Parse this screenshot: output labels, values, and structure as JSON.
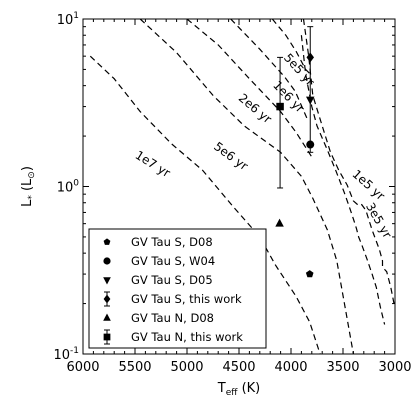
{
  "chart_data": {
    "type": "scatter",
    "xlabel_main": "T",
    "xlabel_sub": "eff",
    "xlabel_unit": " (K)",
    "ylabel_main": "L",
    "ylabel_sub": "*",
    "ylabel_unit_open": " (L",
    "ylabel_unit_sub": "⊙",
    "ylabel_unit_close": ")",
    "x_reversed": true,
    "xlim": [
      6000,
      3000
    ],
    "y_scale": "log",
    "ylim": [
      0.1,
      10
    ],
    "x_ticks": [
      {
        "value": 6000,
        "label": "6000"
      },
      {
        "value": 5500,
        "label": "5500"
      },
      {
        "value": 5000,
        "label": "5000"
      },
      {
        "value": 4500,
        "label": "4500"
      },
      {
        "value": 4000,
        "label": "4000"
      },
      {
        "value": 3500,
        "label": "3500"
      },
      {
        "value": 3000,
        "label": "3000"
      }
    ],
    "y_ticks": [
      {
        "value": 0.1,
        "base": "10",
        "exp": "-1"
      },
      {
        "value": 1,
        "base": "10",
        "exp": "0"
      },
      {
        "value": 10,
        "base": "10",
        "exp": "1"
      }
    ],
    "isochrones": [
      {
        "label": "1e5 yr",
        "points": [
          [
            3880,
            10
          ],
          [
            3830,
            6.0
          ],
          [
            3790,
            3.5
          ],
          [
            3690,
            2.2
          ],
          [
            3620,
            1.6
          ],
          [
            3540,
            1.25
          ],
          [
            3460,
            1.02
          ],
          [
            3400,
            0.82
          ],
          [
            3350,
            0.77
          ],
          [
            3320,
            0.78
          ],
          [
            3280,
            0.72
          ],
          [
            3220,
            0.55
          ],
          [
            3150,
            0.42
          ],
          [
            3120,
            0.36
          ],
          [
            3120,
            0.33
          ],
          [
            3080,
            0.31
          ],
          [
            3040,
            0.25
          ],
          [
            3010,
            0.2
          ]
        ]
      },
      {
        "label": "3e5 yr",
        "points": [
          [
            3900,
            8.0
          ],
          [
            3860,
            4.7
          ],
          [
            3800,
            3.0
          ],
          [
            3750,
            2.3
          ],
          [
            3650,
            1.65
          ],
          [
            3570,
            1.25
          ],
          [
            3490,
            0.93
          ],
          [
            3440,
            0.76
          ],
          [
            3400,
            0.64
          ],
          [
            3370,
            0.56
          ],
          [
            3350,
            0.5
          ],
          [
            3320,
            0.45
          ],
          [
            3270,
            0.37
          ],
          [
            3220,
            0.3
          ],
          [
            3180,
            0.25
          ],
          [
            3140,
            0.19
          ],
          [
            3100,
            0.15
          ]
        ]
      },
      {
        "label": "5e5 yr",
        "points": [
          [
            4180,
            10
          ],
          [
            4050,
            8.0
          ],
          [
            3950,
            6.4
          ],
          [
            3860,
            5.0
          ],
          [
            3800,
            4.6
          ]
        ]
      },
      {
        "label": "1e6 yr",
        "points": [
          [
            4580,
            10
          ],
          [
            4300,
            6.6
          ],
          [
            4060,
            4.5
          ],
          [
            3960,
            3.7
          ],
          [
            3840,
            2.5
          ]
        ]
      },
      {
        "label": "2e6 yr",
        "points": [
          [
            5000,
            10
          ],
          [
            4700,
            7.0
          ],
          [
            4400,
            4.4
          ],
          [
            4100,
            2.8
          ],
          [
            3950,
            2.1
          ],
          [
            3800,
            1.5
          ]
        ]
      },
      {
        "label": "5e6 yr",
        "points": [
          [
            5450,
            10
          ],
          [
            5100,
            6.3
          ],
          [
            4750,
            3.5
          ],
          [
            4450,
            2.3
          ],
          [
            4100,
            1.6
          ],
          [
            3900,
            1.15
          ],
          [
            3790,
            0.85
          ],
          [
            3650,
            0.55
          ],
          [
            3560,
            0.36
          ],
          [
            3480,
            0.19
          ],
          [
            3400,
            0.1
          ]
        ]
      },
      {
        "label": "1e7 yr",
        "points": [
          [
            5930,
            6.0
          ],
          [
            5700,
            4.4
          ],
          [
            5450,
            2.8
          ],
          [
            5150,
            1.8
          ],
          [
            4850,
            1.25
          ],
          [
            4550,
            0.75
          ],
          [
            4300,
            0.5
          ],
          [
            4150,
            0.34
          ],
          [
            3950,
            0.22
          ],
          [
            3820,
            0.155
          ],
          [
            3720,
            0.1
          ]
        ]
      }
    ],
    "isochrone_labels": [
      {
        "text": "5e5 yr",
        "x": 3950,
        "y": 4.8,
        "angle": 48
      },
      {
        "text": "1e6 yr",
        "x": 4050,
        "y": 3.3,
        "angle": 46
      },
      {
        "text": "2e6 yr",
        "x": 4370,
        "y": 2.8,
        "angle": 40
      },
      {
        "text": "5e6 yr",
        "x": 4600,
        "y": 1.45,
        "angle": 36
      },
      {
        "text": "1e7 yr",
        "x": 5350,
        "y": 1.3,
        "angle": 32
      },
      {
        "text": "1e5 yr",
        "x": 3280,
        "y": 0.98,
        "angle": 42
      },
      {
        "text": "3e5 yr",
        "x": 3190,
        "y": 0.61,
        "angle": 60
      }
    ],
    "series": [
      {
        "name": "GV Tau S, D08",
        "marker": "pentagon",
        "points": [
          {
            "x": 3820,
            "y": 0.3
          }
        ]
      },
      {
        "name": "GV Tau S, W04",
        "marker": "circle",
        "points": [
          {
            "x": 3815,
            "y": 1.78
          }
        ]
      },
      {
        "name": "GV Tau S, D05",
        "marker": "triangle-down",
        "points": [
          {
            "x": 3815,
            "y": 3.3
          }
        ]
      },
      {
        "name": "GV Tau S, this work",
        "marker": "diamond",
        "points": [
          {
            "x": 3815,
            "y": 5.9,
            "yerr_low": 1.6,
            "yerr_high": 9.0
          }
        ]
      },
      {
        "name": "GV Tau N, D08",
        "marker": "triangle-up",
        "points": [
          {
            "x": 4110,
            "y": 0.6
          }
        ]
      },
      {
        "name": "GV Tau N, this work",
        "marker": "square",
        "points": [
          {
            "x": 4105,
            "y": 3.0,
            "yerr_low": 0.98,
            "yerr_high": 5.9
          }
        ]
      }
    ],
    "legend_position": "lower-left",
    "grid": false
  }
}
